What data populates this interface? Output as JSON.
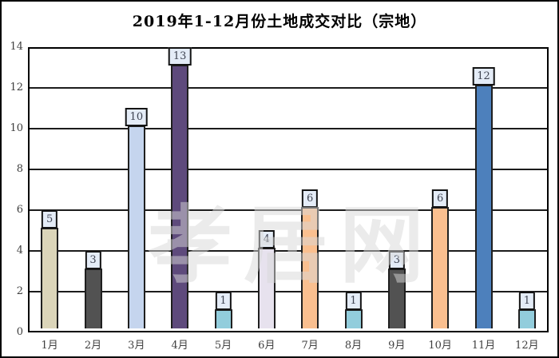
{
  "watermark_text": "孝居网",
  "chart_data": {
    "type": "bar",
    "title": "2019年1-12月份土地成交对比（宗地）",
    "categories": [
      "1月",
      "2月",
      "3月",
      "4月",
      "5月",
      "6月",
      "7月",
      "8月",
      "9月",
      "10月",
      "11月",
      "12月"
    ],
    "values": [
      5,
      3,
      10,
      13,
      1,
      4,
      6,
      1,
      3,
      6,
      12,
      1
    ],
    "bar_colors": [
      "#dbd5b9",
      "#525252",
      "#c5d5ee",
      "#5e4a7c",
      "#92cddc",
      "#e7e2ee",
      "#fabf8f",
      "#92cddc",
      "#525252",
      "#fabf8f",
      "#4d80bc",
      "#92cddc"
    ],
    "data_labels": [
      5,
      3,
      10,
      13,
      1,
      4,
      6,
      1,
      3,
      6,
      12,
      1
    ],
    "xlabel": "",
    "ylabel": "",
    "ylim": [
      0,
      14
    ],
    "yticks": [
      0,
      2,
      4,
      6,
      8,
      10,
      12,
      14
    ],
    "grid": true,
    "legend": false,
    "label_box_bg": "#e4ecf7",
    "label_box_border": "#141414",
    "axis_text_color": "#3f3f3f",
    "plot_border_color": "#000000"
  }
}
